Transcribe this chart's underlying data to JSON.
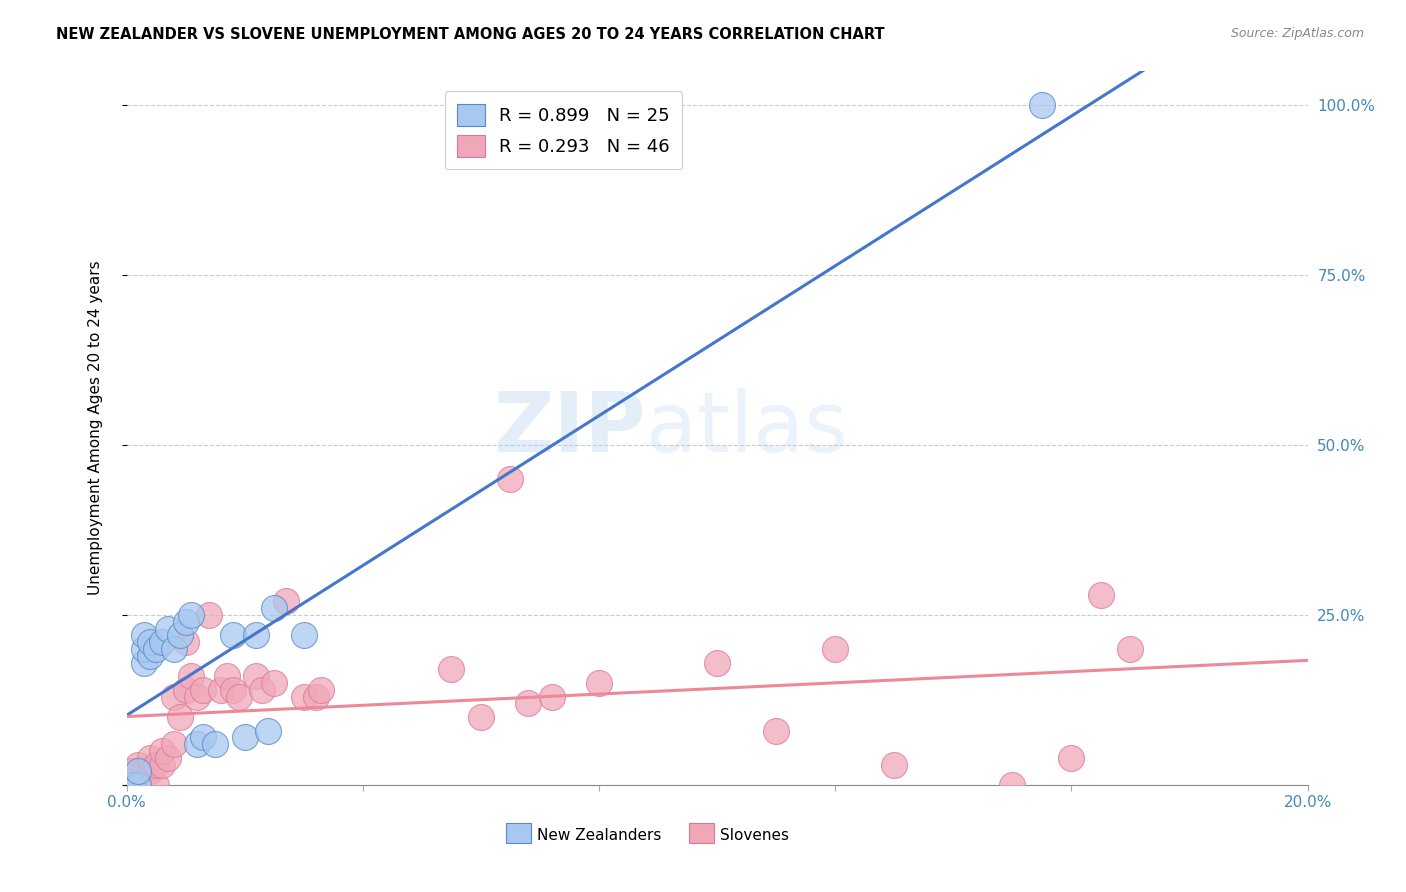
{
  "title": "NEW ZEALANDER VS SLOVENE UNEMPLOYMENT AMONG AGES 20 TO 24 YEARS CORRELATION CHART",
  "source": "Source: ZipAtlas.com",
  "ylabel": "Unemployment Among Ages 20 to 24 years",
  "xlim": [
    0.0,
    0.2
  ],
  "ylim": [
    0.0,
    1.05
  ],
  "x_ticks": [
    0.0,
    0.04,
    0.08,
    0.12,
    0.16,
    0.2
  ],
  "x_tick_labels": [
    "0.0%",
    "",
    "",
    "",
    "",
    "20.0%"
  ],
  "y_ticks": [
    0.0,
    0.25,
    0.5,
    0.75,
    1.0
  ],
  "y_tick_labels": [
    "",
    "25.0%",
    "50.0%",
    "75.0%",
    "100.0%"
  ],
  "nz_R": 0.899,
  "nz_N": 25,
  "sl_R": 0.293,
  "sl_N": 46,
  "nz_color": "#a8c8f0",
  "sl_color": "#f0a8b8",
  "nz_edge_color": "#5588cc",
  "sl_edge_color": "#dd7799",
  "nz_line_color": "#4477cc",
  "sl_line_color": "#ee8899",
  "nz_x": [
    0.001,
    0.002,
    0.002,
    0.003,
    0.003,
    0.003,
    0.004,
    0.004,
    0.005,
    0.006,
    0.007,
    0.008,
    0.009,
    0.01,
    0.011,
    0.012,
    0.013,
    0.015,
    0.018,
    0.02,
    0.022,
    0.024,
    0.025,
    0.03,
    0.155
  ],
  "nz_y": [
    0.0,
    0.0,
    0.02,
    0.18,
    0.2,
    0.22,
    0.19,
    0.21,
    0.2,
    0.21,
    0.23,
    0.2,
    0.22,
    0.24,
    0.25,
    0.06,
    0.07,
    0.06,
    0.22,
    0.07,
    0.22,
    0.08,
    0.26,
    0.22,
    1.0
  ],
  "sl_x": [
    0.001,
    0.001,
    0.002,
    0.002,
    0.003,
    0.004,
    0.004,
    0.005,
    0.005,
    0.006,
    0.006,
    0.007,
    0.008,
    0.008,
    0.009,
    0.01,
    0.01,
    0.011,
    0.012,
    0.013,
    0.014,
    0.016,
    0.017,
    0.018,
    0.019,
    0.022,
    0.023,
    0.025,
    0.027,
    0.03,
    0.032,
    0.033,
    0.055,
    0.06,
    0.065,
    0.068,
    0.072,
    0.08,
    0.1,
    0.11,
    0.12,
    0.13,
    0.15,
    0.16,
    0.165,
    0.17
  ],
  "sl_y": [
    0.0,
    0.02,
    0.0,
    0.03,
    0.02,
    0.02,
    0.04,
    0.0,
    0.03,
    0.03,
    0.05,
    0.04,
    0.13,
    0.06,
    0.1,
    0.14,
    0.21,
    0.16,
    0.13,
    0.14,
    0.25,
    0.14,
    0.16,
    0.14,
    0.13,
    0.16,
    0.14,
    0.15,
    0.27,
    0.13,
    0.13,
    0.14,
    0.17,
    0.1,
    0.45,
    0.12,
    0.13,
    0.15,
    0.18,
    0.08,
    0.2,
    0.03,
    0.0,
    0.04,
    0.28,
    0.2
  ]
}
